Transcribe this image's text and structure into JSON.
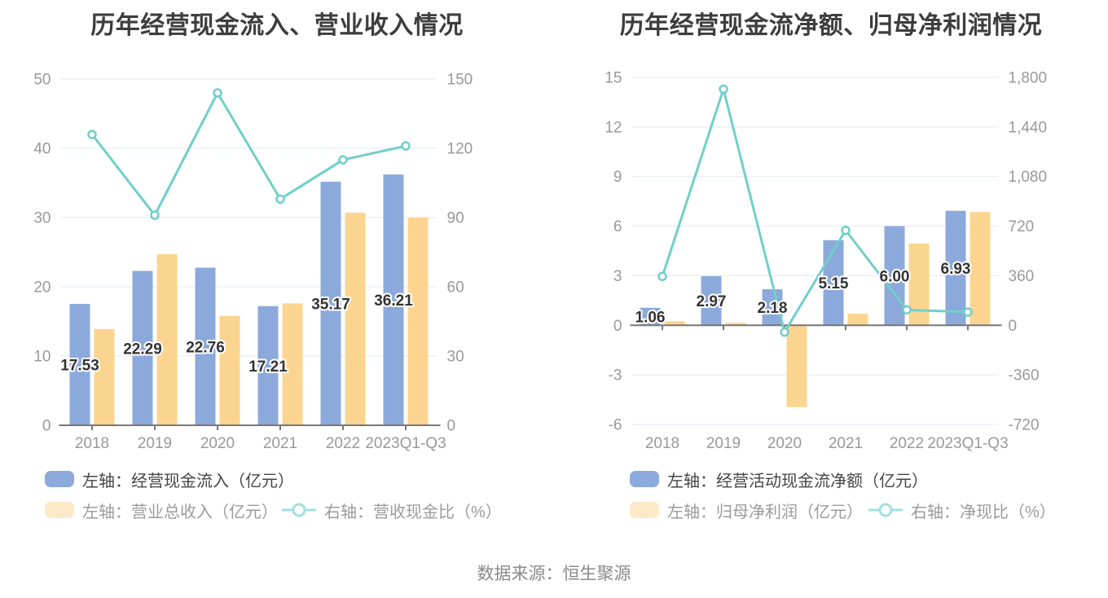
{
  "page": {
    "source_text": "数据来源：恒生聚源"
  },
  "colors": {
    "bar_blue": "#8CA9DB",
    "bar_orange": "#FBD58F",
    "line_teal": "#70CFCB",
    "legend_orange_swatch": "#FDE9C7",
    "legend_teal": "#A3DFDD",
    "grid": "#E2E8F4",
    "axis": "#777777",
    "tick_label": "#999999",
    "title": "#3D3D3D",
    "data_label": "#333333",
    "source": "#8A8A8A"
  },
  "chart_data": [
    {
      "type": "combo-bar-line",
      "title": "历年经营现金流入、营业收入情况",
      "x_categories": [
        "2018",
        "2019",
        "2020",
        "2021",
        "2022",
        "2023Q1-Q3"
      ],
      "left_axis": {
        "min": 0,
        "max": 50,
        "ticks": [
          {
            "v": 50,
            "label": "50"
          },
          {
            "v": 40,
            "label": "40"
          },
          {
            "v": 30,
            "label": "30"
          },
          {
            "v": 20,
            "label": "20"
          },
          {
            "v": 10,
            "label": "10"
          },
          {
            "v": 0,
            "label": "0"
          }
        ]
      },
      "right_axis": {
        "min": 0,
        "max": 150,
        "ticks": [
          {
            "v": 150,
            "label": "150"
          },
          {
            "v": 120,
            "label": "120"
          },
          {
            "v": 90,
            "label": "90"
          },
          {
            "v": 60,
            "label": "60"
          },
          {
            "v": 30,
            "label": "30"
          },
          {
            "v": 0,
            "label": "0"
          }
        ]
      },
      "series": [
        {
          "id": "operating-cash-inflow",
          "type": "bar",
          "axis": "left",
          "color_key": "bar_blue",
          "legend_label": "左轴：经营现金流入（亿元）",
          "values": [
            17.53,
            22.29,
            22.76,
            17.21,
            35.17,
            36.21
          ],
          "data_labels": [
            "17.53",
            "22.29",
            "22.76",
            "17.21",
            "35.17",
            "36.21"
          ]
        },
        {
          "id": "total-operating-revenue",
          "type": "bar",
          "axis": "left",
          "color_key": "bar_orange",
          "legend_label": "左轴：营业总收入（亿元）",
          "values": [
            13.9,
            24.7,
            15.8,
            17.6,
            30.7,
            30.0
          ]
        },
        {
          "id": "revenue-cash-ratio",
          "type": "line",
          "axis": "right",
          "color_key": "line_teal",
          "legend_label": "右轴：营收现金比（%）",
          "values": [
            126,
            91,
            144,
            98,
            115,
            121
          ]
        }
      ]
    },
    {
      "type": "combo-bar-line",
      "title": "历年经营现金流净额、归母净利润情况",
      "x_categories": [
        "2018",
        "2019",
        "2020",
        "2021",
        "2022",
        "2023Q1-Q3"
      ],
      "left_axis": {
        "min": -6,
        "max": 15,
        "ticks": [
          {
            "v": 15,
            "label": "15"
          },
          {
            "v": 12,
            "label": "12"
          },
          {
            "v": 9,
            "label": "9"
          },
          {
            "v": 6,
            "label": "6"
          },
          {
            "v": 3,
            "label": "3"
          },
          {
            "v": 0,
            "label": "0"
          },
          {
            "v": -3,
            "label": "-3"
          },
          {
            "v": -6,
            "label": "-6"
          }
        ]
      },
      "right_axis": {
        "min": -720,
        "max": 1800,
        "ticks": [
          {
            "v": 1800,
            "label": "1,800"
          },
          {
            "v": 1440,
            "label": "1,440"
          },
          {
            "v": 1080,
            "label": "1,080"
          },
          {
            "v": 720,
            "label": "720"
          },
          {
            "v": 360,
            "label": "360"
          },
          {
            "v": 0,
            "label": "0"
          },
          {
            "v": -360,
            "label": "-360"
          },
          {
            "v": -720,
            "label": "-720"
          }
        ]
      },
      "series": [
        {
          "id": "net-operating-cash-flow",
          "type": "bar",
          "axis": "left",
          "color_key": "bar_blue",
          "legend_label": "左轴：经营活动现金流净额（亿元）",
          "values": [
            1.06,
            2.97,
            2.18,
            5.15,
            6.0,
            6.93
          ],
          "data_labels": [
            "1.06",
            "2.97",
            "2.18",
            "5.15",
            "6.00",
            "6.93"
          ]
        },
        {
          "id": "net-profit-to-parent",
          "type": "bar",
          "axis": "left",
          "color_key": "bar_orange",
          "legend_label": "左轴：归母净利润（亿元）",
          "values": [
            0.25,
            0.15,
            -4.95,
            0.7,
            4.95,
            6.85
          ]
        },
        {
          "id": "net-cash-ratio",
          "type": "line",
          "axis": "right",
          "color_key": "line_teal",
          "legend_label": "右轴：净现比（%）",
          "values": [
            355,
            1715,
            -50,
            690,
            112,
            96
          ]
        }
      ]
    }
  ]
}
